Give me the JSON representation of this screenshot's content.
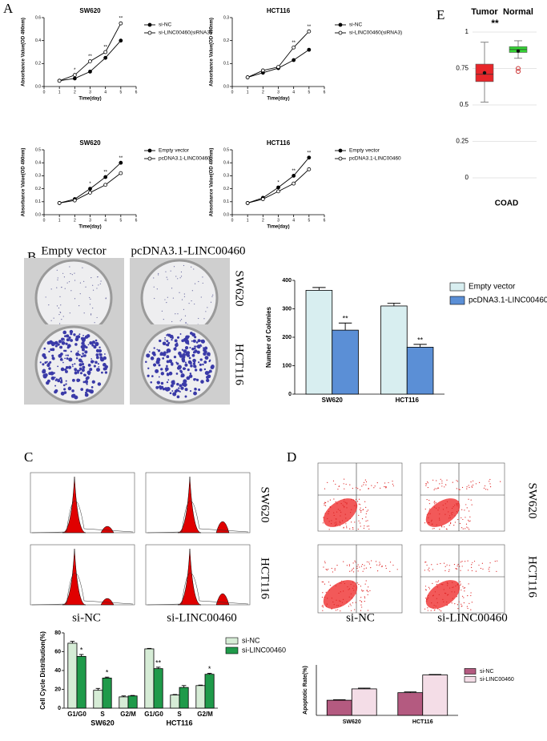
{
  "panels": {
    "A": "A",
    "B": "B",
    "C": "C",
    "D": "D",
    "E": "E"
  },
  "images": {
    "colony_columns": [
      "Empty vector",
      "pcDNA3.1-LINC00460"
    ],
    "colony_rows": [
      "SW620",
      "HCT116"
    ],
    "cycle_columns": [
      "si-NC",
      "si-LINC00460"
    ],
    "cycle_rows": [
      "SW620",
      "HCT116"
    ],
    "apoptosis_columns": [
      "si-NC",
      "si-LINC00460"
    ],
    "apoptosis_rows": [
      "SW620",
      "HCT116"
    ]
  },
  "chart_data": [
    {
      "type": "line",
      "title": "SW620",
      "xlabel": "Time(day)",
      "ylabel": "Absorbance Value(OD 490nm)",
      "x": [
        1,
        2,
        3,
        4,
        5
      ],
      "xlim": [
        0,
        6
      ],
      "xticks": [
        0,
        1,
        2,
        3,
        4,
        5,
        6
      ],
      "ylim": [
        0,
        0.6
      ],
      "yticks": [
        {
          "value": 0,
          "label": "0.0"
        },
        0.2,
        0.4,
        0.6
      ],
      "series": [
        {
          "name": "si-NC",
          "marker": "filled",
          "color": "#000",
          "values": [
            0.05,
            0.07,
            0.13,
            0.25,
            0.4
          ],
          "significance": [
            null,
            null,
            null,
            null,
            null
          ]
        },
        {
          "name": "si-LINC00460(siRNA3)",
          "marker": "open",
          "color": "#000",
          "values": [
            0.05,
            0.1,
            0.22,
            0.3,
            0.55
          ],
          "significance": [
            null,
            "*",
            "**",
            "**",
            "**"
          ]
        }
      ]
    },
    {
      "type": "line",
      "title": "HCT116",
      "xlabel": "Time(day)",
      "ylabel": "Absorbance Value(OD 490nm)",
      "x": [
        1,
        2,
        3,
        4,
        5
      ],
      "xlim": [
        0,
        6
      ],
      "xticks": [
        0,
        1,
        2,
        3,
        4,
        5,
        6
      ],
      "ylim": [
        0,
        0.3
      ],
      "yticks": [
        {
          "value": 0,
          "label": "0.0"
        },
        0.1,
        0.2,
        0.3
      ],
      "series": [
        {
          "name": "si-NC",
          "marker": "filled",
          "color": "#000",
          "values": [
            0.04,
            0.06,
            0.08,
            0.115,
            0.16
          ],
          "significance": [
            null,
            null,
            null,
            null,
            null
          ]
        },
        {
          "name": "si-LINC00460(siRNA3)",
          "marker": "open",
          "color": "#000",
          "values": [
            0.04,
            0.07,
            0.085,
            0.17,
            0.24
          ],
          "significance": [
            null,
            null,
            null,
            "**",
            "**"
          ]
        }
      ]
    },
    {
      "type": "line",
      "title": "SW620",
      "xlabel": "Time(day)",
      "ylabel": "Absorbance Value(OD 490nm)",
      "x": [
        1,
        2,
        3,
        4,
        5
      ],
      "xlim": [
        0,
        6
      ],
      "xticks": [
        0,
        1,
        2,
        3,
        4,
        5,
        6
      ],
      "ylim": [
        0,
        0.5
      ],
      "yticks": [
        {
          "value": 0,
          "label": "0.0"
        },
        0.1,
        0.2,
        0.3,
        0.4,
        0.5
      ],
      "series": [
        {
          "name": "Empty vector",
          "marker": "filled",
          "color": "#000",
          "values": [
            0.09,
            0.12,
            0.2,
            0.29,
            0.4
          ],
          "significance": [
            null,
            null,
            "*",
            "**",
            "**"
          ]
        },
        {
          "name": "pcDNA3.1-LINC00460",
          "marker": "open",
          "color": "#000",
          "values": [
            0.09,
            0.11,
            0.17,
            0.23,
            0.32
          ],
          "significance": [
            null,
            null,
            null,
            null,
            null
          ]
        }
      ]
    },
    {
      "type": "line",
      "title": "HCT116",
      "xlabel": "Time(day)",
      "ylabel": "Absorbance Value(OD 490nm)",
      "x": [
        1,
        2,
        3,
        4,
        5
      ],
      "xlim": [
        0,
        6
      ],
      "xticks": [
        0,
        1,
        2,
        3,
        4,
        5,
        6
      ],
      "ylim": [
        0,
        0.5
      ],
      "yticks": [
        {
          "value": 0,
          "label": "0.0"
        },
        0.1,
        0.2,
        0.3,
        0.4,
        0.5
      ],
      "series": [
        {
          "name": "Empty vector",
          "marker": "filled",
          "color": "#000",
          "values": [
            0.09,
            0.13,
            0.21,
            0.3,
            0.44
          ],
          "significance": [
            null,
            null,
            "*",
            "**",
            "**"
          ]
        },
        {
          "name": "pcDNA3.1-LINC00460",
          "marker": "open",
          "color": "#000",
          "values": [
            0.09,
            0.12,
            0.18,
            0.24,
            0.35
          ],
          "significance": [
            null,
            null,
            null,
            null,
            null
          ]
        }
      ]
    },
    {
      "type": "bar",
      "ylabel": "Number of Colonies",
      "categories": [
        "SW620",
        "HCT116"
      ],
      "ylim": [
        0,
        400
      ],
      "yticks": [
        0,
        100,
        200,
        300,
        400
      ],
      "series": [
        {
          "name": "Empty vector",
          "color": "#d8eef0",
          "values": [
            365,
            310
          ],
          "errors": [
            10,
            10
          ],
          "significance": [
            null,
            null
          ]
        },
        {
          "name": "pcDNA3.1-LINC00460",
          "color": "#5b8fd6",
          "values": [
            225,
            165
          ],
          "errors": [
            25,
            10
          ],
          "significance": [
            "**",
            "**"
          ]
        }
      ]
    },
    {
      "type": "box",
      "xlabel": "COAD",
      "ylim": [
        0,
        1
      ],
      "yticks": [
        0,
        0.25,
        0.5,
        0.75,
        1
      ],
      "annotation": "**",
      "boxes": [
        {
          "name": "Tumor",
          "color": "#e8262a",
          "whisker_low": 0.52,
          "q1": 0.66,
          "median": 0.71,
          "q3": 0.78,
          "whisker_high": 0.93,
          "mean": 0.72,
          "outliers": []
        },
        {
          "name": "Normal",
          "color": "#35d435",
          "whisker_low": 0.82,
          "q1": 0.86,
          "median": 0.88,
          "q3": 0.9,
          "whisker_high": 0.94,
          "mean": 0.87,
          "outliers": [
            0.73,
            0.75
          ]
        }
      ]
    },
    {
      "type": "bar",
      "ylabel": "Cell Cycle Distribution(%)",
      "categories": [
        "G1/G0",
        "S",
        "G2/M",
        "G1/G0",
        "S",
        "G2/M"
      ],
      "groups": [
        "SW620",
        "HCT116"
      ],
      "ylim": [
        0,
        80
      ],
      "yticks": [
        0,
        20,
        40,
        60,
        80
      ],
      "series": [
        {
          "name": "si-NC",
          "color": "#d6ecd6",
          "values": [
            69,
            19,
            12,
            63,
            14,
            24
          ],
          "errors": [
            2,
            2,
            1,
            0.5,
            0.5,
            0.5
          ],
          "significance": [
            null,
            null,
            null,
            null,
            null,
            null
          ]
        },
        {
          "name": "si-LINC00460",
          "color": "#1f9a4a",
          "values": [
            55,
            32,
            13,
            42,
            22,
            36
          ],
          "errors": [
            2,
            1,
            0.5,
            1.5,
            2,
            1
          ],
          "significance": [
            "*",
            "*",
            null,
            "**",
            null,
            "*"
          ]
        }
      ]
    },
    {
      "type": "bar",
      "ylabel": "Apoptotic Rate(%)",
      "categories": [
        "SW620",
        "HCT116"
      ],
      "ylim": [
        0,
        20
      ],
      "series": [
        {
          "name": "si-NC",
          "color": "#b45a80",
          "values": [
            6,
            9
          ],
          "errors": [
            0.2,
            0.3
          ],
          "significance": [
            null,
            null
          ]
        },
        {
          "name": "si-LINC00460",
          "color": "#f4dde7",
          "values": [
            10.5,
            16
          ],
          "errors": [
            0.3,
            0.2
          ],
          "significance": [
            null,
            null
          ]
        }
      ]
    }
  ]
}
